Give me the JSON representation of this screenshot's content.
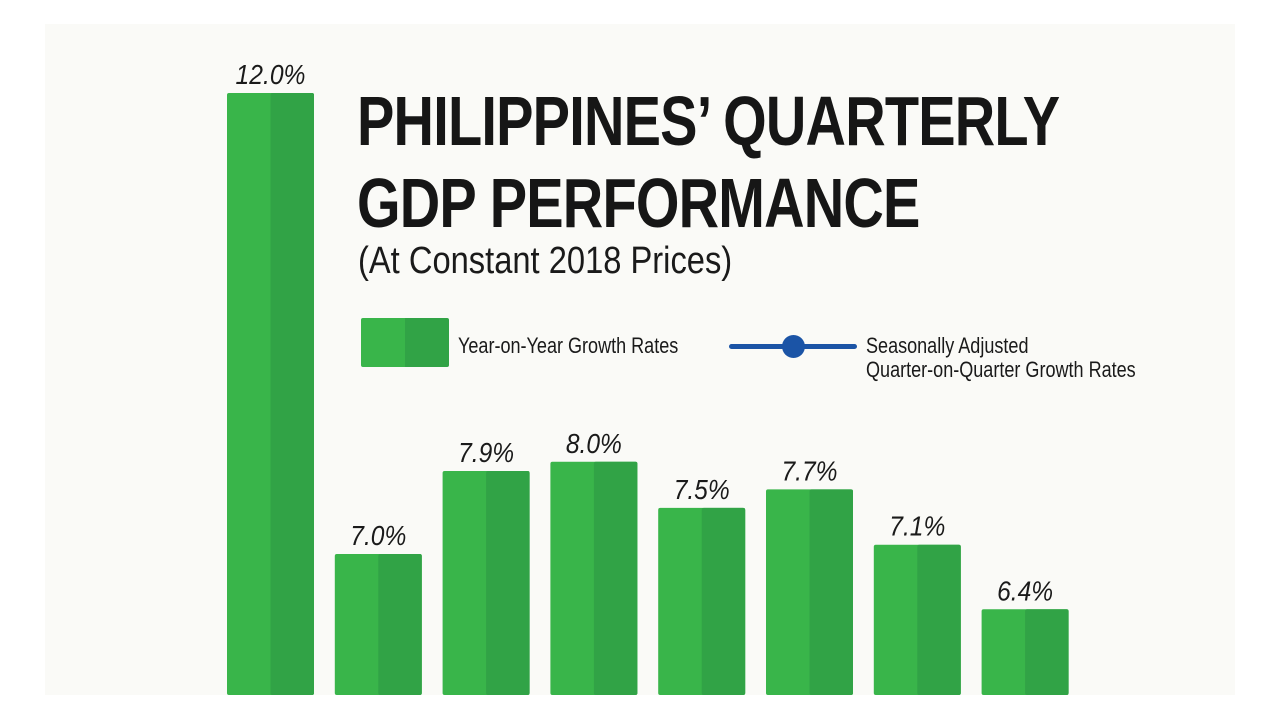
{
  "chart_data": {
    "type": "bar",
    "title": "PHILIPPINES’ QUARTERLY GDP PERFORMANCE",
    "title_lines": [
      "PHILIPPINES’ QUARTERLY",
      "GDP PERFORMANCE"
    ],
    "subtitle": "(At Constant 2018 Prices)",
    "xlabel": "",
    "ylabel": "",
    "ylim": [
      5.47,
      12.0
    ],
    "grid": false,
    "legend_placement": "top-right",
    "legend": [
      {
        "label": "Year-on-Year Growth Rates",
        "marker": "bar",
        "color": "#39b54a"
      },
      {
        "label_lines": [
          "Seasonally Adjusted",
          "Quarter-on-Quarter Growth Rates"
        ],
        "marker": "line-dot",
        "color": "#1b54a6"
      }
    ],
    "series": [
      {
        "name": "Year-on-Year Growth Rates",
        "values": [
          12.0,
          7.0,
          7.9,
          8.0,
          7.5,
          7.7,
          7.1,
          6.4
        ],
        "labels": [
          "12.0%",
          "7.0%",
          "7.9%",
          "8.0%",
          "7.5%",
          "7.7%",
          "7.1%",
          "6.4%"
        ],
        "color": "#39b54a",
        "shade_color": "#31a346"
      }
    ]
  }
}
